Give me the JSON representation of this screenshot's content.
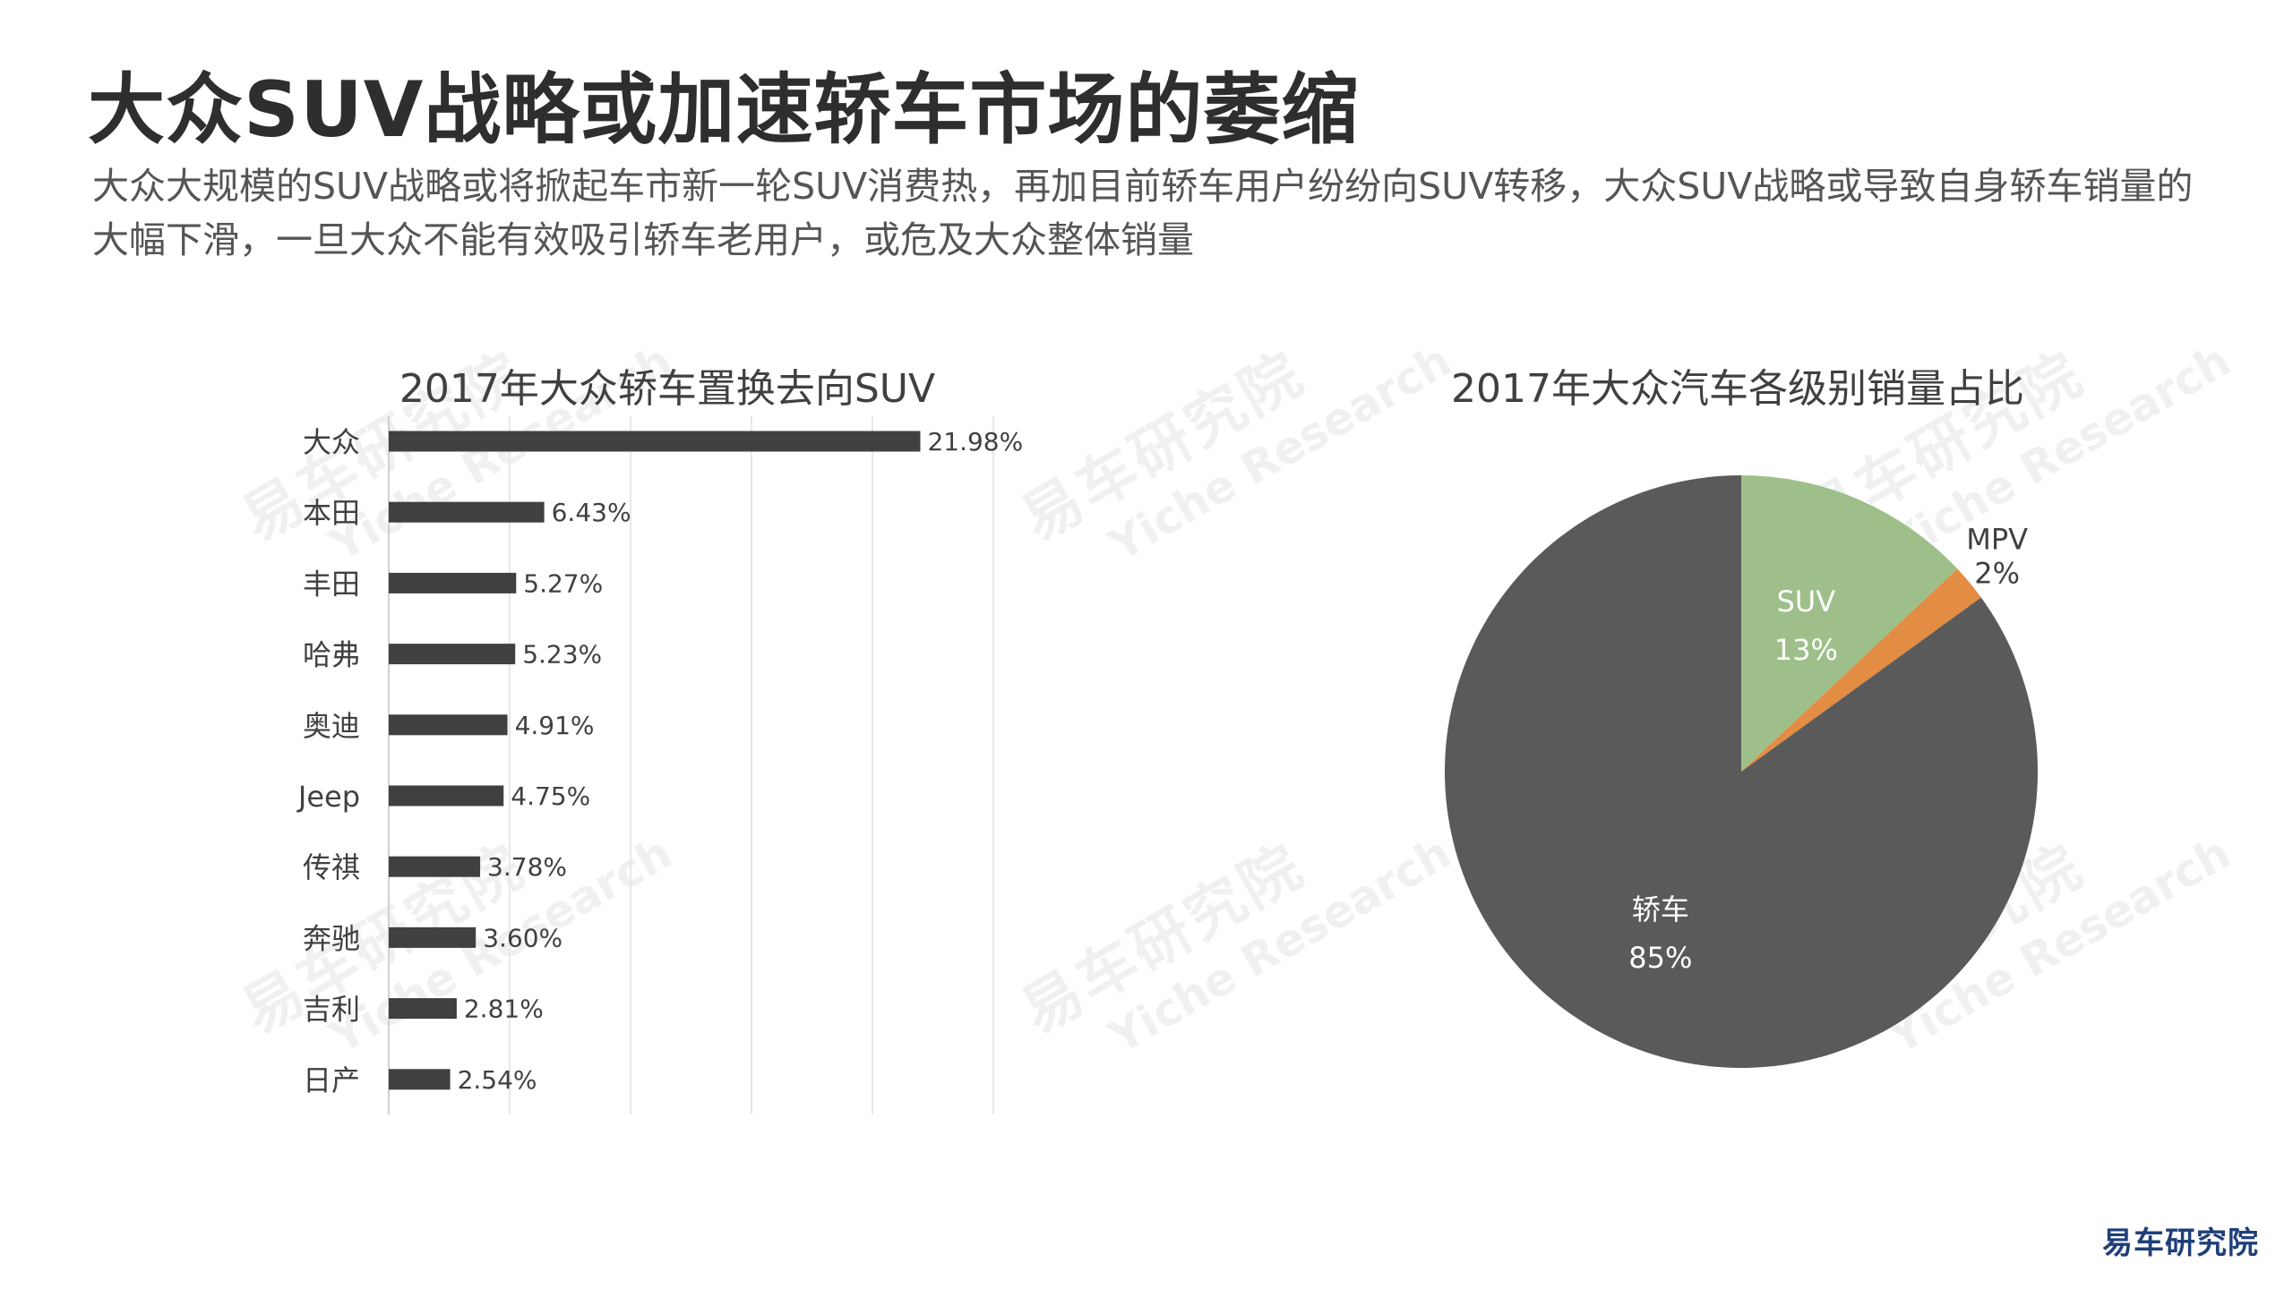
{
  "page": {
    "title": "大众SUV战略或加速轿车市场的萎缩",
    "subtitle": "大众大规模的SUV战略或将掀起车市新一轮SUV消费热，再加目前轿车用户纷纷向SUV转移，大众SUV战略或导致自身轿车销量的大幅下滑，一旦大众不能有效吸引轿车老用户，或危及大众整体销量",
    "watermark_cn": "易车研究院",
    "watermark_en": "Yiche Research",
    "brand": "易车研究院"
  },
  "colors": {
    "bar": "#404040",
    "gridline": "#e8e8e8",
    "pie_sedan": "#5a5a5a",
    "pie_suv": "#9ebf8a",
    "pie_mpv": "#e38c43",
    "text_dark": "#404040"
  },
  "chart_data": [
    {
      "type": "bar",
      "orientation": "horizontal",
      "title": "2017年大众轿车置换去向SUV",
      "categories": [
        "大众",
        "本田",
        "丰田",
        "哈弗",
        "奥迪",
        "Jeep",
        "传祺",
        "奔驰",
        "吉利",
        "日产"
      ],
      "values": [
        21.98,
        6.43,
        5.27,
        5.23,
        4.91,
        4.75,
        3.78,
        3.6,
        2.81,
        2.54
      ],
      "value_labels": [
        "21.98%",
        "6.43%",
        "5.27%",
        "5.23%",
        "4.91%",
        "4.75%",
        "3.78%",
        "3.60%",
        "2.81%",
        "2.54%"
      ],
      "xlim": [
        0,
        25
      ],
      "grid_step": 5,
      "grid": true
    },
    {
      "type": "pie",
      "title": "2017年大众汽车各级别销量占比",
      "slices": [
        {
          "label": "SUV",
          "value": 13,
          "value_label": "13%"
        },
        {
          "label": "MPV",
          "value": 2,
          "value_label": "2%"
        },
        {
          "label": "轿车",
          "value": 85,
          "value_label": "85%"
        }
      ]
    }
  ]
}
